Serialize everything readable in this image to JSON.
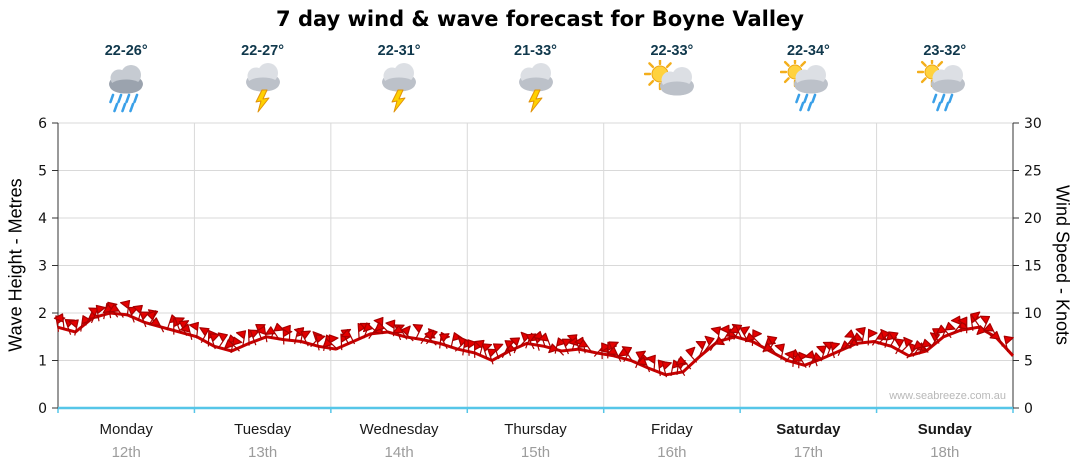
{
  "title": "7 day wind & wave forecast for Boyne Valley",
  "watermark": "www.seabreeze.com.au",
  "forecast_days": [
    {
      "temp": "22-26°",
      "icon": "heavy-rain-icon",
      "day": "Monday",
      "date": "12th",
      "weekend": false
    },
    {
      "temp": "22-27°",
      "icon": "storm-icon",
      "day": "Tuesday",
      "date": "13th",
      "weekend": false
    },
    {
      "temp": "22-31°",
      "icon": "storm-icon",
      "day": "Wednesday",
      "date": "14th",
      "weekend": false
    },
    {
      "temp": "21-33°",
      "icon": "storm-icon",
      "day": "Thursday",
      "date": "15th",
      "weekend": false
    },
    {
      "temp": "22-33°",
      "icon": "sun-cloud-icon",
      "day": "Friday",
      "date": "16th",
      "weekend": false
    },
    {
      "temp": "22-34°",
      "icon": "sun-cloud-showers-icon",
      "day": "Saturday",
      "date": "17th",
      "weekend": true
    },
    {
      "temp": "23-32°",
      "icon": "sun-cloud-showers-icon",
      "day": "Sunday",
      "date": "18th",
      "weekend": true
    }
  ],
  "chart_data": {
    "type": "line",
    "title": "7 day wind & wave forecast for Boyne Valley",
    "left_axis": {
      "label": "Wave Height - Metres",
      "min": 0,
      "max": 6,
      "ticks": [
        0,
        1,
        2,
        3,
        4,
        5,
        6
      ]
    },
    "right_axis": {
      "label": "Wind Speed - Knots",
      "min": 0,
      "max": 30,
      "ticks": [
        0,
        5,
        10,
        15,
        20,
        25,
        30
      ]
    },
    "x_categories": [
      "Monday",
      "Tuesday",
      "Wednesday",
      "Thursday",
      "Friday",
      "Saturday",
      "Sunday"
    ],
    "samples_per_day": 8,
    "grid": true,
    "legend": "none",
    "series": [
      {
        "name": "Wind Speed (knots)",
        "axis": "right",
        "style": "wind-barbs",
        "color": "#e40000",
        "values": [
          8.5,
          8.0,
          9.5,
          10.0,
          9.8,
          9.0,
          8.5,
          8.0,
          7.5,
          6.5,
          6.0,
          6.8,
          7.5,
          7.2,
          7.0,
          6.5,
          6.2,
          7.0,
          7.8,
          8.0,
          7.5,
          7.2,
          6.8,
          6.2,
          5.8,
          5.0,
          6.0,
          6.8,
          6.5,
          6.0,
          6.2,
          5.8,
          5.5,
          5.0,
          4.2,
          3.5,
          3.8,
          5.5,
          7.0,
          7.5,
          7.0,
          6.0,
          5.0,
          4.5,
          5.2,
          6.0,
          6.8,
          7.0,
          6.5,
          5.5,
          6.0,
          7.5,
          8.2,
          8.5,
          7.5,
          5.5
        ]
      }
    ]
  }
}
